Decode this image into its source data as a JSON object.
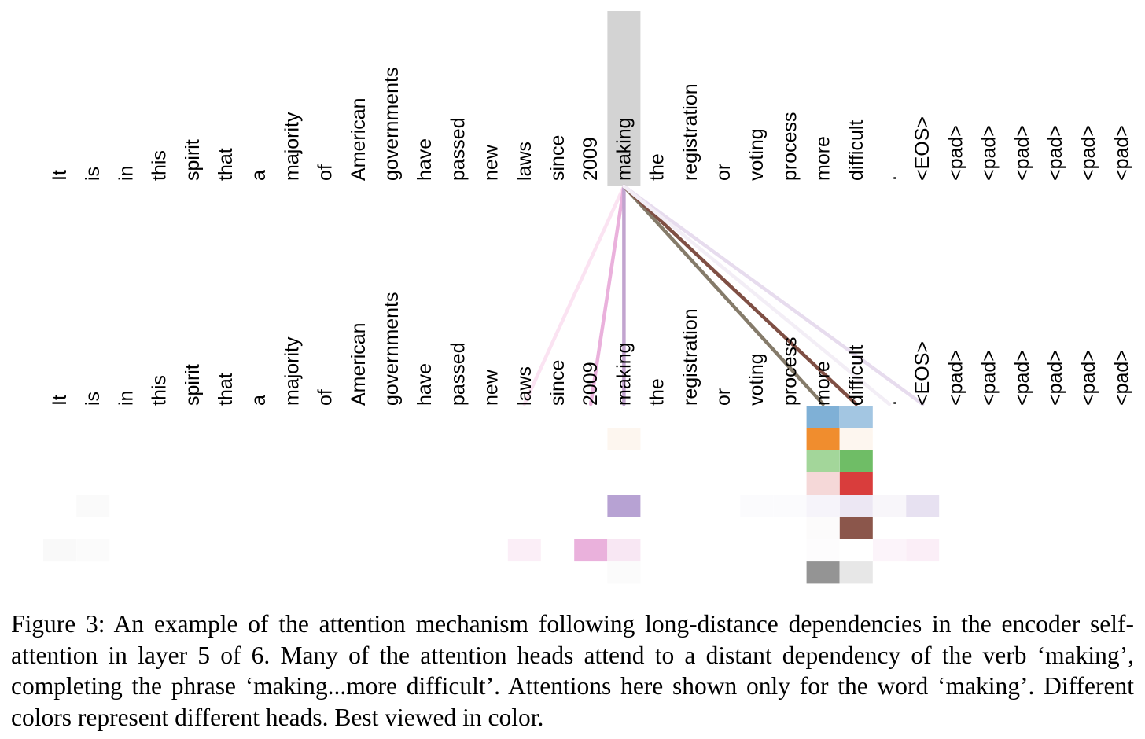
{
  "figure": {
    "tokens": [
      "It",
      "is",
      "in",
      "this",
      "spirit",
      "that",
      "a",
      "majority",
      "of",
      "American",
      "governments",
      "have",
      "passed",
      "new",
      "laws",
      "since",
      "2009",
      "making",
      "the",
      "registration",
      "or",
      "voting",
      "process",
      "more",
      "difficult",
      ".",
      "<EOS>",
      "<pad>",
      "<pad>",
      "<pad>",
      "<pad>",
      "<pad>",
      "<pad>"
    ],
    "query_token": "making",
    "highlight_color": "#d3d3d3",
    "head_colors": [
      "#7fb0d6",
      "#f08d2e",
      "#a3d69a",
      "#d93d3c",
      "#b7a2d3",
      "#8b564b",
      "#e7a3d1",
      "#949494"
    ],
    "attention_lines": [
      {
        "target": "laws",
        "color": "#fbe3f2"
      },
      {
        "target": "2009",
        "color": "#eab1dc"
      },
      {
        "target": "making",
        "color": "#c2a4cf"
      },
      {
        "target": "more",
        "color": "#857b6a"
      },
      {
        "target": "difficult",
        "color": "#7f4f44"
      },
      {
        "target": "<EOS>",
        "color": "#e7dcee"
      },
      {
        "target": ".",
        "color": "#f3eef6"
      }
    ],
    "heatmap_cells": [
      {
        "token": "more",
        "head": 0,
        "color": "#7fb0d6"
      },
      {
        "token": "difficult",
        "head": 0,
        "color": "#a3c6e2"
      },
      {
        "token": "more",
        "head": 1,
        "color": "#f08d2e"
      },
      {
        "token": "difficult",
        "head": 1,
        "color": "#fdf6ef"
      },
      {
        "token": "making",
        "head": 1,
        "color": "#fdf6ef"
      },
      {
        "token": "more",
        "head": 2,
        "color": "#a3d69a"
      },
      {
        "token": "difficult",
        "head": 2,
        "color": "#6fbd66"
      },
      {
        "token": "more",
        "head": 3,
        "color": "#f5d8d8"
      },
      {
        "token": "difficult",
        "head": 3,
        "color": "#d93d3c"
      },
      {
        "token": "making",
        "head": 4,
        "color": "#b7a2d3"
      },
      {
        "token": "is",
        "head": 4,
        "color": "#fafafa"
      },
      {
        "token": "voting",
        "head": 4,
        "color": "#fbfbfd"
      },
      {
        "token": "process",
        "head": 4,
        "color": "#fbfbfd"
      },
      {
        "token": "more",
        "head": 4,
        "color": "#f6f4fa"
      },
      {
        "token": "difficult",
        "head": 4,
        "color": "#ece7f3"
      },
      {
        "token": ".",
        "head": 4,
        "color": "#f8f6fa"
      },
      {
        "token": "<EOS>",
        "head": 4,
        "color": "#e7e1f1"
      },
      {
        "token": "more",
        "head": 5,
        "color": "#fcfbfb"
      },
      {
        "token": "difficult",
        "head": 5,
        "color": "#8b564b"
      },
      {
        "token": "It",
        "head": 6,
        "color": "#f9f9f9"
      },
      {
        "token": "is",
        "head": 6,
        "color": "#fbfbfb"
      },
      {
        "token": "laws",
        "head": 6,
        "color": "#fbeef7"
      },
      {
        "token": "2009",
        "head": 6,
        "color": "#eab1dc"
      },
      {
        "token": "making",
        "head": 6,
        "color": "#f8e7f3"
      },
      {
        "token": "more",
        "head": 6,
        "color": "#fdfcfd"
      },
      {
        "token": ".",
        "head": 6,
        "color": "#fcf4fa"
      },
      {
        "token": "<EOS>",
        "head": 6,
        "color": "#fbeef7"
      },
      {
        "token": "making",
        "head": 7,
        "color": "#fbfbfb"
      },
      {
        "token": "more",
        "head": 7,
        "color": "#949494"
      },
      {
        "token": "difficult",
        "head": 7,
        "color": "#e7e7e7"
      }
    ]
  },
  "caption": "Figure 3:  An example of the attention mechanism following long-distance dependencies in the encoder self-attention in layer 5 of 6. Many of the attention heads attend to a distant dependency of the verb ‘making’, completing the phrase ‘making...more difficult’. Attentions here shown only for the word ‘making’. Different colors represent different heads. Best viewed in color."
}
